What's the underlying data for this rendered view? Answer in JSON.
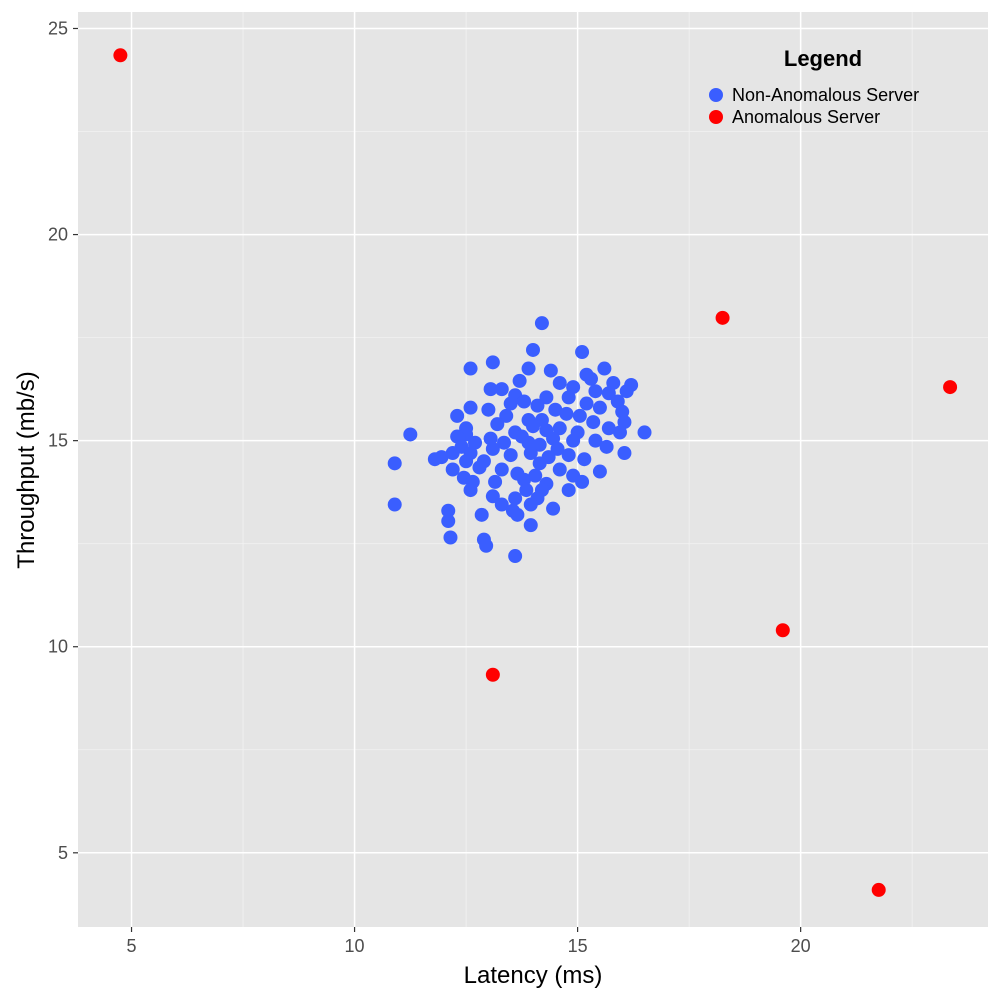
{
  "chart_data": {
    "type": "scatter",
    "title": "",
    "xlabel": "Latency (ms)",
    "ylabel": "Throughput (mb/s)",
    "xlim": [
      3.8,
      24.2
    ],
    "ylim": [
      3.2,
      25.4
    ],
    "x_ticks": [
      5,
      10,
      15,
      20
    ],
    "y_ticks": [
      5,
      10,
      15,
      20,
      25
    ],
    "x_tick_labels": [
      "5",
      "10",
      "15",
      "20"
    ],
    "y_tick_labels": [
      "5",
      "10",
      "15",
      "20",
      "25"
    ],
    "grid": true,
    "legend": {
      "title": "Legend",
      "position": "top-right"
    },
    "series": [
      {
        "name": "Non-Anomalous Server",
        "color": "#3a5eff",
        "points": [
          [
            14.2,
            17.85
          ],
          [
            15.1,
            17.15
          ],
          [
            14.0,
            17.2
          ],
          [
            13.1,
            16.9
          ],
          [
            12.6,
            16.75
          ],
          [
            13.9,
            16.75
          ],
          [
            14.4,
            16.7
          ],
          [
            15.6,
            16.75
          ],
          [
            15.2,
            16.6
          ],
          [
            13.7,
            16.45
          ],
          [
            15.3,
            16.5
          ],
          [
            14.6,
            16.4
          ],
          [
            15.8,
            16.4
          ],
          [
            16.2,
            16.35
          ],
          [
            13.3,
            16.25
          ],
          [
            13.05,
            16.25
          ],
          [
            14.9,
            16.3
          ],
          [
            15.4,
            16.2
          ],
          [
            16.1,
            16.2
          ],
          [
            15.7,
            16.15
          ],
          [
            13.6,
            16.1
          ],
          [
            14.3,
            16.05
          ],
          [
            14.8,
            16.05
          ],
          [
            15.9,
            15.95
          ],
          [
            13.8,
            15.95
          ],
          [
            15.2,
            15.9
          ],
          [
            13.5,
            15.9
          ],
          [
            14.1,
            15.85
          ],
          [
            12.6,
            15.8
          ],
          [
            13.0,
            15.75
          ],
          [
            14.5,
            15.75
          ],
          [
            15.5,
            15.8
          ],
          [
            16.0,
            15.7
          ],
          [
            12.3,
            15.6
          ],
          [
            14.75,
            15.65
          ],
          [
            13.4,
            15.6
          ],
          [
            15.05,
            15.6
          ],
          [
            16.05,
            15.45
          ],
          [
            13.9,
            15.5
          ],
          [
            14.2,
            15.5
          ],
          [
            15.35,
            15.45
          ],
          [
            12.5,
            15.3
          ],
          [
            13.2,
            15.4
          ],
          [
            14.0,
            15.35
          ],
          [
            14.6,
            15.3
          ],
          [
            15.7,
            15.3
          ],
          [
            11.25,
            15.15
          ],
          [
            12.5,
            15.15
          ],
          [
            13.6,
            15.2
          ],
          [
            14.3,
            15.25
          ],
          [
            15.0,
            15.2
          ],
          [
            15.95,
            15.2
          ],
          [
            16.5,
            15.2
          ],
          [
            12.3,
            15.1
          ],
          [
            13.05,
            15.05
          ],
          [
            13.75,
            15.1
          ],
          [
            14.45,
            15.05
          ],
          [
            14.9,
            15.0
          ],
          [
            15.4,
            15.0
          ],
          [
            12.7,
            14.95
          ],
          [
            13.35,
            14.95
          ],
          [
            13.9,
            14.95
          ],
          [
            14.15,
            14.9
          ],
          [
            15.65,
            14.85
          ],
          [
            12.4,
            14.85
          ],
          [
            13.1,
            14.8
          ],
          [
            14.55,
            14.8
          ],
          [
            11.95,
            14.6
          ],
          [
            11.8,
            14.55
          ],
          [
            12.2,
            14.7
          ],
          [
            12.6,
            14.7
          ],
          [
            13.5,
            14.65
          ],
          [
            13.95,
            14.7
          ],
          [
            14.35,
            14.6
          ],
          [
            14.8,
            14.65
          ],
          [
            15.15,
            14.55
          ],
          [
            16.05,
            14.7
          ],
          [
            10.9,
            14.45
          ],
          [
            12.5,
            14.5
          ],
          [
            12.9,
            14.5
          ],
          [
            14.15,
            14.45
          ],
          [
            12.8,
            14.35
          ],
          [
            13.3,
            14.3
          ],
          [
            14.6,
            14.3
          ],
          [
            15.5,
            14.25
          ],
          [
            12.2,
            14.3
          ],
          [
            13.65,
            14.2
          ],
          [
            14.05,
            14.15
          ],
          [
            14.9,
            14.15
          ],
          [
            12.45,
            14.1
          ],
          [
            12.65,
            14.0
          ],
          [
            13.15,
            14.0
          ],
          [
            13.8,
            14.05
          ],
          [
            14.3,
            13.95
          ],
          [
            15.1,
            14.0
          ],
          [
            12.6,
            13.8
          ],
          [
            13.85,
            13.8
          ],
          [
            14.2,
            13.8
          ],
          [
            14.8,
            13.8
          ],
          [
            13.1,
            13.65
          ],
          [
            13.6,
            13.6
          ],
          [
            14.1,
            13.6
          ],
          [
            10.9,
            13.45
          ],
          [
            13.3,
            13.45
          ],
          [
            13.95,
            13.45
          ],
          [
            14.45,
            13.35
          ],
          [
            12.1,
            13.3
          ],
          [
            13.55,
            13.3
          ],
          [
            12.85,
            13.2
          ],
          [
            13.65,
            13.2
          ],
          [
            12.1,
            13.05
          ],
          [
            13.95,
            12.95
          ],
          [
            12.15,
            12.65
          ],
          [
            12.9,
            12.6
          ],
          [
            12.95,
            12.45
          ],
          [
            13.6,
            12.2
          ]
        ]
      },
      {
        "name": "Anomalous Server",
        "color": "#ff0000",
        "points": [
          [
            4.75,
            24.35
          ],
          [
            18.25,
            17.98
          ],
          [
            23.35,
            16.3
          ],
          [
            19.6,
            10.4
          ],
          [
            13.1,
            9.32
          ],
          [
            21.75,
            4.1
          ]
        ]
      }
    ]
  }
}
